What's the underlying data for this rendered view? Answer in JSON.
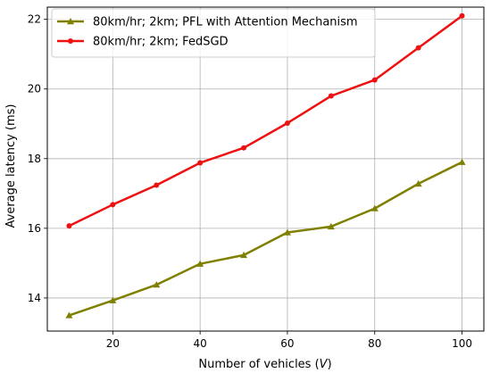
{
  "chart_data": {
    "type": "line",
    "xlabel_prefix": "Number of vehicles (",
    "xlabel_var": "V",
    "xlabel_suffix": ")",
    "ylabel": "Average latency (ms)",
    "x": [
      10,
      20,
      30,
      40,
      50,
      60,
      70,
      80,
      90,
      100
    ],
    "xticks": [
      20,
      40,
      60,
      80,
      100
    ],
    "yticks": [
      14,
      16,
      18,
      20,
      22
    ],
    "xlim": [
      5,
      105
    ],
    "ylim": [
      13.05,
      22.35
    ],
    "grid": true,
    "legend_position": "top-left",
    "series": [
      {
        "name": "80km/hr; 2km; PFL with Attention Mechanism",
        "color": "#808000",
        "marker": "triangle",
        "values": [
          13.5,
          13.93,
          14.38,
          14.98,
          15.23,
          15.88,
          16.05,
          16.57,
          17.28,
          17.9
        ]
      },
      {
        "name": "80km/hr; 2km; FedSGD",
        "color": "#ee1111",
        "marker": "circle",
        "values": [
          16.07,
          16.68,
          17.24,
          17.88,
          18.31,
          19.02,
          19.8,
          20.26,
          21.18,
          22.1
        ]
      }
    ]
  }
}
